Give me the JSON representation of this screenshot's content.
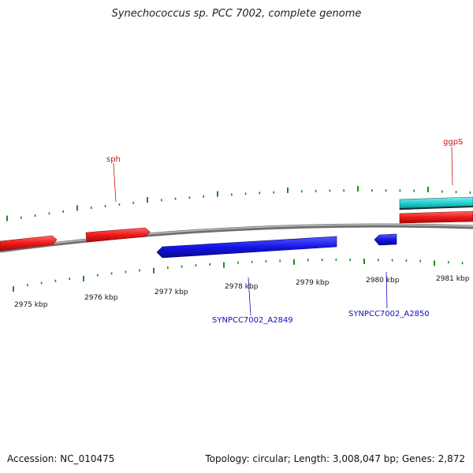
{
  "title": "Synechococcus sp. PCC 7002, complete genome",
  "footer": {
    "accession": "Accession: NC_010475",
    "summary": "Topology: circular; Length: 3,008,047 bp; Genes: 2,872"
  },
  "scale": {
    "labels": [
      "2975 kbp",
      "2976 kbp",
      "2977 kbp",
      "2978 kbp",
      "2979 kbp",
      "2980 kbp",
      "2981 kbp"
    ]
  },
  "genes": [
    {
      "label": "",
      "strand": "forward",
      "color": "#e8141e"
    },
    {
      "label": "sph",
      "strand": "forward",
      "color": "#e8141e"
    },
    {
      "label": "SYNPCC7002_A2849",
      "strand": "reverse",
      "color": "#1515e0"
    },
    {
      "label": "SYNPCC7002_A2850",
      "strand": "reverse",
      "color": "#1515e0"
    },
    {
      "label": "ggpS",
      "strand": "forward",
      "color": "#e8141e"
    },
    {
      "label": "",
      "strand": "forward",
      "color": "#21c8c8"
    }
  ],
  "colors": {
    "forward_label": "#cc1111",
    "reverse_label": "#1111bb",
    "tick": "#1e8a1e",
    "backbone": "#8a8a8a"
  }
}
